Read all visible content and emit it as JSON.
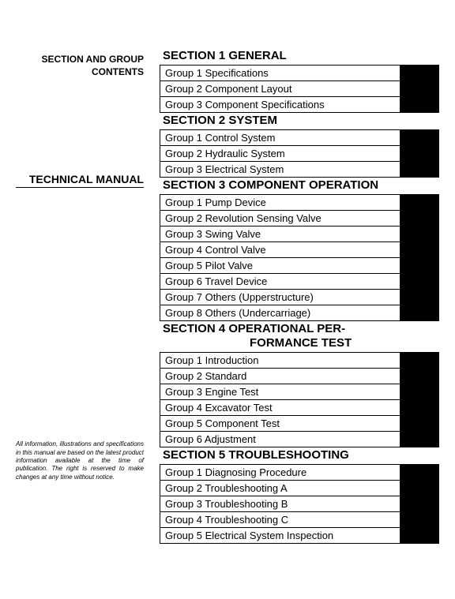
{
  "left": {
    "heading_line1": "SECTION AND GROUP",
    "heading_line2": "CONTENTS",
    "tech_manual": "TECHNICAL MANUAL",
    "disclaimer": "All information, illustrations and specifications in this manual are based on the latest product information available at the time of publication. The right is reserved to make changes at any time without notice."
  },
  "sections": [
    {
      "title": "SECTION 1 GENERAL",
      "groups": [
        "Group 1 Specifications",
        "Group 2 Component Layout",
        "Group 3 Component Specifications"
      ]
    },
    {
      "title": "SECTION 2 SYSTEM",
      "groups": [
        "Group 1 Control System",
        "Group 2 Hydraulic System",
        "Group 3 Electrical System"
      ]
    },
    {
      "title": "SECTION 3 COMPONENT OPERATION",
      "groups": [
        "Group 1 Pump Device",
        "Group 2 Revolution Sensing Valve",
        "Group 3 Swing Valve",
        "Group 4 Control Valve",
        "Group 5 Pilot Valve",
        "Group 6 Travel Device",
        "Group 7 Others (Upperstructure)",
        "Group 8 Others (Undercarriage)"
      ]
    },
    {
      "title_line1": "SECTION 4  OPERATIONAL PER-",
      "title_line2": "FORMANCE TEST",
      "wrapped": true,
      "groups": [
        "Group 1 Introduction",
        "Group 2 Standard",
        "Group 3 Engine Test",
        "Group 4 Excavator Test",
        "Group 5 Component Test",
        "Group 6 Adjustment"
      ]
    },
    {
      "title": "SECTION 5 TROUBLESHOOTING",
      "groups": [
        "Group 1 Diagnosing Procedure",
        "Group 2 Troubleshooting A",
        "Group 3 Troubleshooting B",
        "Group 4 Troubleshooting C",
        "Group 5 Electrical System Inspection"
      ]
    }
  ],
  "colors": {
    "background": "#ffffff",
    "text": "#000000",
    "border": "#000000",
    "black_block": "#000000"
  }
}
